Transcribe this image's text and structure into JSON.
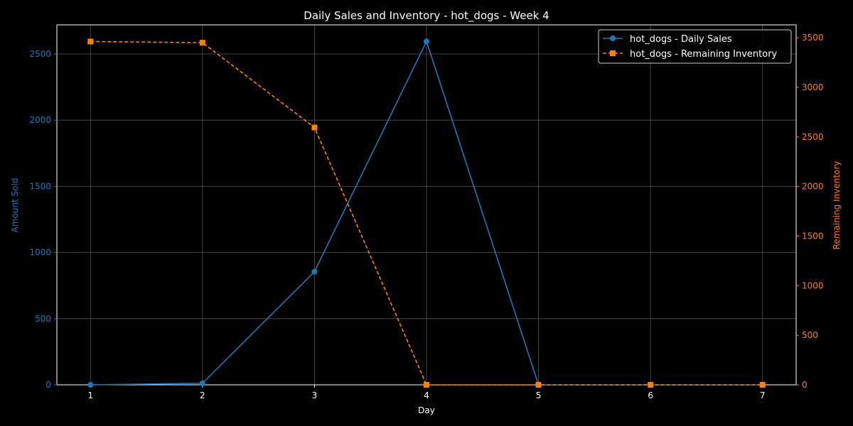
{
  "chart_data": {
    "type": "line",
    "title": "Daily Sales and Inventory - hot_dogs - Week 4",
    "xlabel": "Day",
    "ylabel_left": "Amount Sold",
    "ylabel_right": "Remaining Inventory",
    "x": [
      1,
      2,
      3,
      4,
      5,
      6,
      7
    ],
    "xlim": [
      0.7,
      7.3
    ],
    "ylim_left": [
      0,
      2720
    ],
    "ylim_right": [
      0,
      3630
    ],
    "yticks_left": [
      0,
      500,
      1000,
      1500,
      2000,
      2500
    ],
    "yticks_right": [
      0,
      500,
      1000,
      1500,
      2000,
      2500,
      3000,
      3500
    ],
    "grid": true,
    "legend_position": "top-right",
    "series": [
      {
        "name": "hot_dogs - Daily Sales",
        "axis": "left",
        "color": "#1f77b4",
        "marker": "circle",
        "style": "solid",
        "values": [
          0,
          12,
          855,
          2595,
          0,
          0,
          0
        ]
      },
      {
        "name": "hot_dogs - Remaining Inventory",
        "axis": "right",
        "color": "#ff7f0e",
        "marker": "square",
        "style": "dashed",
        "values": [
          3462,
          3450,
          2595,
          0,
          0,
          0,
          0
        ]
      }
    ]
  }
}
